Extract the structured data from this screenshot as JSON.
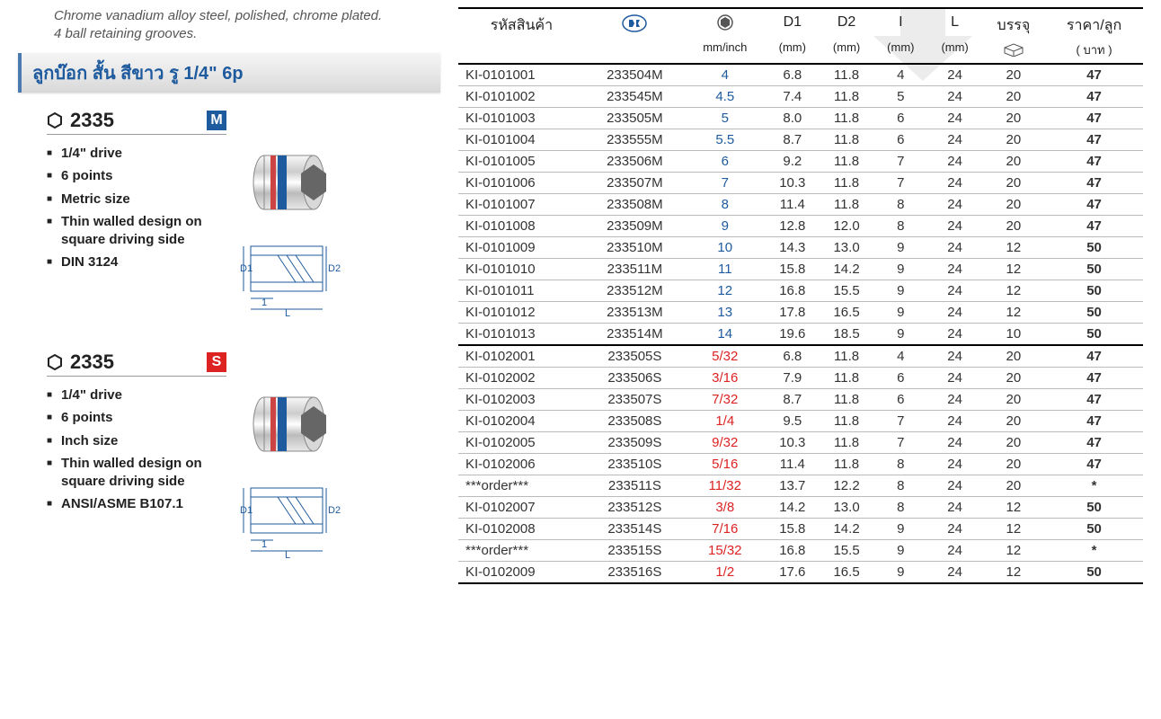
{
  "intro": {
    "line1": "Chrome vanadium alloy steel, polished, chrome plated.",
    "line2": "4 ball retaining grooves."
  },
  "title": "ลูกบ๊อก สั้น สีขาว รู 1/4\" 6p",
  "products": [
    {
      "number": "2335",
      "badge": "M",
      "badge_color": "#1e5a9e",
      "bullets": [
        "1/4\" drive",
        "6 points",
        "Metric size",
        "Thin walled design on square driving side",
        "DIN 3124"
      ]
    },
    {
      "number": "2335",
      "badge": "S",
      "badge_color": "#d22",
      "bullets": [
        "1/4\" drive",
        "6 points",
        "Inch size",
        "Thin walled design on square driving side",
        "ANSI/ASME B107.1"
      ]
    }
  ],
  "table": {
    "headers": {
      "sku": "รหัสสินค้า",
      "logo": "",
      "size_unit": "mm/inch",
      "d1": "D1",
      "d1_unit": "(mm)",
      "d2": "D2",
      "d2_unit": "(mm)",
      "i": "I",
      "i_unit": "(mm)",
      "l": "L",
      "l_unit": "(mm)",
      "pack": "บรรจุ",
      "price": "ราคา/ลูก",
      "price_unit": "( บาท )"
    },
    "rows_m": [
      {
        "sku": "KI-0101001",
        "code": "233504M",
        "size": "4",
        "d1": "6.8",
        "d2": "11.8",
        "i": "4",
        "l": "24",
        "pack": "20",
        "price": "47"
      },
      {
        "sku": "KI-0101002",
        "code": "233545M",
        "size": "4.5",
        "d1": "7.4",
        "d2": "11.8",
        "i": "5",
        "l": "24",
        "pack": "20",
        "price": "47"
      },
      {
        "sku": "KI-0101003",
        "code": "233505M",
        "size": "5",
        "d1": "8.0",
        "d2": "11.8",
        "i": "6",
        "l": "24",
        "pack": "20",
        "price": "47"
      },
      {
        "sku": "KI-0101004",
        "code": "233555M",
        "size": "5.5",
        "d1": "8.7",
        "d2": "11.8",
        "i": "6",
        "l": "24",
        "pack": "20",
        "price": "47"
      },
      {
        "sku": "KI-0101005",
        "code": "233506M",
        "size": "6",
        "d1": "9.2",
        "d2": "11.8",
        "i": "7",
        "l": "24",
        "pack": "20",
        "price": "47"
      },
      {
        "sku": "KI-0101006",
        "code": "233507M",
        "size": "7",
        "d1": "10.3",
        "d2": "11.8",
        "i": "7",
        "l": "24",
        "pack": "20",
        "price": "47"
      },
      {
        "sku": "KI-0101007",
        "code": "233508M",
        "size": "8",
        "d1": "11.4",
        "d2": "11.8",
        "i": "8",
        "l": "24",
        "pack": "20",
        "price": "47"
      },
      {
        "sku": "KI-0101008",
        "code": "233509M",
        "size": "9",
        "d1": "12.8",
        "d2": "12.0",
        "i": "8",
        "l": "24",
        "pack": "20",
        "price": "47"
      },
      {
        "sku": "KI-0101009",
        "code": "233510M",
        "size": "10",
        "d1": "14.3",
        "d2": "13.0",
        "i": "9",
        "l": "24",
        "pack": "12",
        "price": "50"
      },
      {
        "sku": "KI-0101010",
        "code": "233511M",
        "size": "11",
        "d1": "15.8",
        "d2": "14.2",
        "i": "9",
        "l": "24",
        "pack": "12",
        "price": "50"
      },
      {
        "sku": "KI-0101011",
        "code": "233512M",
        "size": "12",
        "d1": "16.8",
        "d2": "15.5",
        "i": "9",
        "l": "24",
        "pack": "12",
        "price": "50"
      },
      {
        "sku": "KI-0101012",
        "code": "233513M",
        "size": "13",
        "d1": "17.8",
        "d2": "16.5",
        "i": "9",
        "l": "24",
        "pack": "12",
        "price": "50"
      },
      {
        "sku": "KI-0101013",
        "code": "233514M",
        "size": "14",
        "d1": "19.6",
        "d2": "18.5",
        "i": "9",
        "l": "24",
        "pack": "10",
        "price": "50"
      }
    ],
    "rows_s": [
      {
        "sku": "KI-0102001",
        "code": "233505S",
        "size": "5/32",
        "d1": "6.8",
        "d2": "11.8",
        "i": "4",
        "l": "24",
        "pack": "20",
        "price": "47"
      },
      {
        "sku": "KI-0102002",
        "code": "233506S",
        "size": "3/16",
        "d1": "7.9",
        "d2": "11.8",
        "i": "6",
        "l": "24",
        "pack": "20",
        "price": "47"
      },
      {
        "sku": "KI-0102003",
        "code": "233507S",
        "size": "7/32",
        "d1": "8.7",
        "d2": "11.8",
        "i": "6",
        "l": "24",
        "pack": "20",
        "price": "47"
      },
      {
        "sku": "KI-0102004",
        "code": "233508S",
        "size": "1/4",
        "d1": "9.5",
        "d2": "11.8",
        "i": "7",
        "l": "24",
        "pack": "20",
        "price": "47"
      },
      {
        "sku": "KI-0102005",
        "code": "233509S",
        "size": "9/32",
        "d1": "10.3",
        "d2": "11.8",
        "i": "7",
        "l": "24",
        "pack": "20",
        "price": "47"
      },
      {
        "sku": "KI-0102006",
        "code": "233510S",
        "size": "5/16",
        "d1": "11.4",
        "d2": "11.8",
        "i": "8",
        "l": "24",
        "pack": "20",
        "price": "47"
      },
      {
        "sku": "***order***",
        "code": "233511S",
        "size": "11/32",
        "d1": "13.7",
        "d2": "12.2",
        "i": "8",
        "l": "24",
        "pack": "20",
        "price": "*"
      },
      {
        "sku": "KI-0102007",
        "code": "233512S",
        "size": "3/8",
        "d1": "14.2",
        "d2": "13.0",
        "i": "8",
        "l": "24",
        "pack": "12",
        "price": "50"
      },
      {
        "sku": "KI-0102008",
        "code": "233514S",
        "size": "7/16",
        "d1": "15.8",
        "d2": "14.2",
        "i": "9",
        "l": "24",
        "pack": "12",
        "price": "50"
      },
      {
        "sku": "***order***",
        "code": "233515S",
        "size": "15/32",
        "d1": "16.8",
        "d2": "15.5",
        "i": "9",
        "l": "24",
        "pack": "12",
        "price": "*"
      },
      {
        "sku": "KI-0102009",
        "code": "233516S",
        "size": "1/2",
        "d1": "17.6",
        "d2": "16.5",
        "i": "9",
        "l": "24",
        "pack": "12",
        "price": "50"
      }
    ]
  },
  "colors": {
    "blue": "#1e5a9e",
    "red": "#d22",
    "border": "#bbb",
    "border_strong": "#000"
  }
}
